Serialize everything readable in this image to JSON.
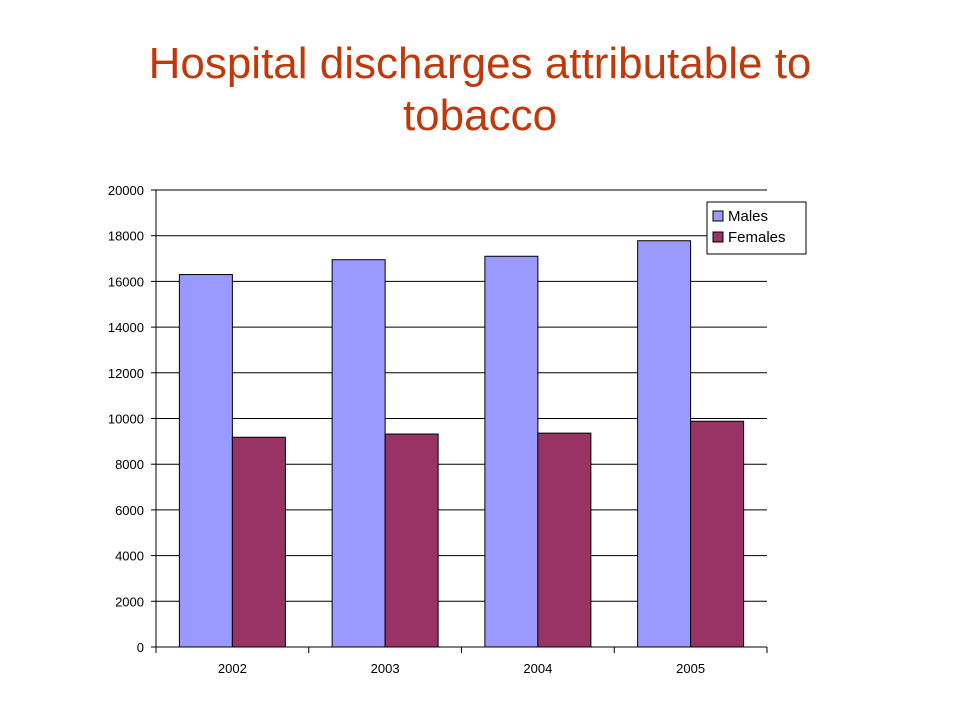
{
  "title": "Hospital discharges attributable to tobacco",
  "chart_data": {
    "type": "bar",
    "categories": [
      "2002",
      "2003",
      "2004",
      "2005"
    ],
    "series": [
      {
        "name": "Males",
        "values": [
          16300,
          16950,
          17100,
          17780
        ],
        "color": "#9999ff"
      },
      {
        "name": "Females",
        "values": [
          9180,
          9320,
          9360,
          9880
        ],
        "color": "#993366"
      }
    ],
    "ylim": [
      0,
      20000
    ],
    "yticks": [
      0,
      2000,
      4000,
      6000,
      8000,
      10000,
      12000,
      14000,
      16000,
      18000,
      20000
    ],
    "grid": true,
    "legend_position": "top-right",
    "xlabel": "",
    "ylabel": ""
  }
}
